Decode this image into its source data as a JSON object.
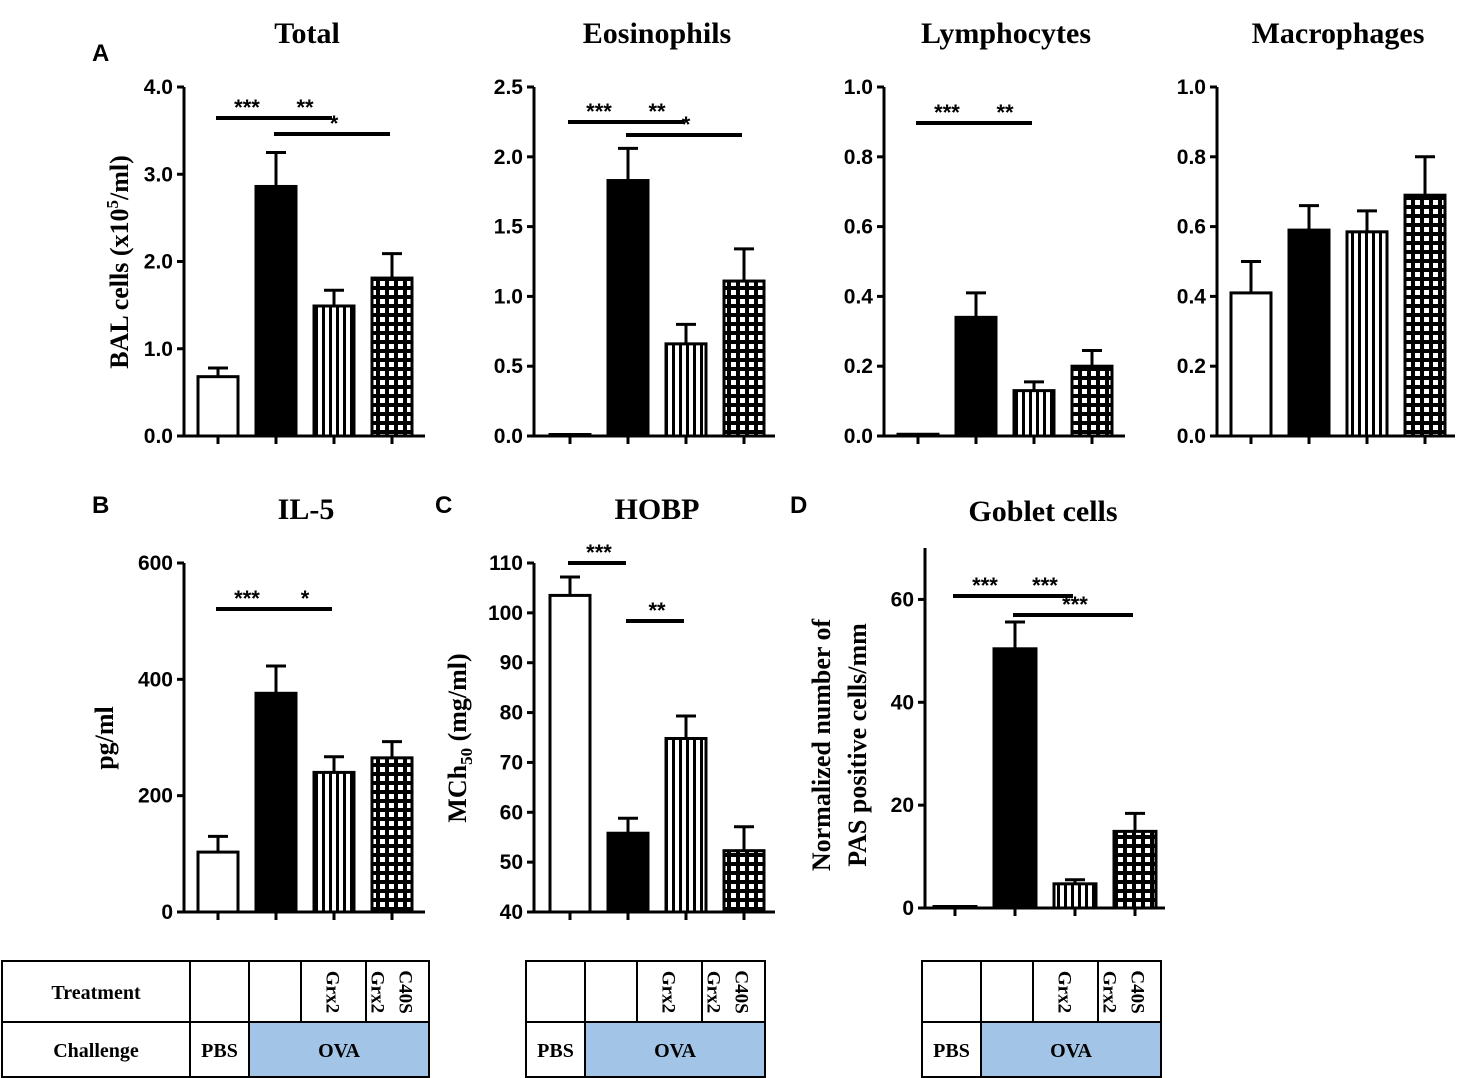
{
  "legend_groups": [
    "PBS",
    "OVA",
    "OVA + Grx2",
    "OVA + Grx2 C40S"
  ],
  "chart_data": [
    {
      "type": "bar",
      "panel": "A",
      "title": "Total",
      "ylabel": "BAL cells (x10^5/ml)",
      "ylim": [
        0,
        4
      ],
      "yticks": [
        "0.0",
        "1.0",
        "2.0",
        "3.0",
        "4.0"
      ],
      "ytick_values": [
        0,
        1,
        2,
        3,
        4
      ],
      "categories": [
        "PBS",
        "OVA",
        "OVA + Grx2",
        "OVA + Grx2 C40S"
      ],
      "values": [
        0.68,
        2.86,
        1.49,
        1.81
      ],
      "errors": [
        0.1,
        0.39,
        0.18,
        0.28
      ],
      "significance": [
        {
          "from": 0,
          "to": 1,
          "label": "***",
          "level": 0
        },
        {
          "from": 1,
          "to": 2,
          "label": "**",
          "level": 0
        },
        {
          "from": 1,
          "to": 3,
          "label": "*",
          "level": 1
        }
      ]
    },
    {
      "type": "bar",
      "panel": "",
      "title": "Eosinophils",
      "ylabel": "",
      "ylim": [
        0,
        2.5
      ],
      "yticks": [
        "0.0",
        "0.5",
        "1.0",
        "1.5",
        "2.0",
        "2.5"
      ],
      "ytick_values": [
        0,
        0.5,
        1,
        1.5,
        2,
        2.5
      ],
      "categories": [
        "PBS",
        "OVA",
        "OVA + Grx2",
        "OVA + Grx2 C40S"
      ],
      "values": [
        0.01,
        1.83,
        0.66,
        1.11
      ],
      "errors": [
        0.0,
        0.23,
        0.14,
        0.23
      ],
      "significance": [
        {
          "from": 0,
          "to": 1,
          "label": "***",
          "level": 0
        },
        {
          "from": 1,
          "to": 2,
          "label": "**",
          "level": 0
        },
        {
          "from": 1,
          "to": 3,
          "label": "*",
          "level": 1
        }
      ]
    },
    {
      "type": "bar",
      "panel": "",
      "title": "Lymphocytes",
      "ylabel": "",
      "ylim": [
        0,
        1
      ],
      "yticks": [
        "0.0",
        "0.2",
        "0.4",
        "0.6",
        "0.8",
        "1.0"
      ],
      "ytick_values": [
        0,
        0.2,
        0.4,
        0.6,
        0.8,
        1.0
      ],
      "categories": [
        "PBS",
        "OVA",
        "OVA + Grx2",
        "OVA + Grx2 C40S"
      ],
      "values": [
        0.005,
        0.34,
        0.13,
        0.2
      ],
      "errors": [
        0.0,
        0.07,
        0.025,
        0.045
      ],
      "significance": [
        {
          "from": 0,
          "to": 1,
          "label": "***",
          "level": 0
        },
        {
          "from": 1,
          "to": 2,
          "label": "**",
          "level": 0
        }
      ]
    },
    {
      "type": "bar",
      "panel": "",
      "title": "Macrophages",
      "ylabel": "",
      "ylim": [
        0,
        1
      ],
      "yticks": [
        "0.0",
        "0.2",
        "0.4",
        "0.6",
        "0.8",
        "1.0"
      ],
      "ytick_values": [
        0,
        0.2,
        0.4,
        0.6,
        0.8,
        1.0
      ],
      "categories": [
        "PBS",
        "OVA",
        "OVA + Grx2",
        "OVA + Grx2 C40S"
      ],
      "values": [
        0.41,
        0.59,
        0.585,
        0.69
      ],
      "errors": [
        0.09,
        0.07,
        0.06,
        0.11
      ],
      "significance": []
    },
    {
      "type": "bar",
      "panel": "B",
      "title": "IL-5",
      "ylabel": "pg/ml",
      "ylim": [
        0,
        600
      ],
      "yticks": [
        "0",
        "200",
        "400",
        "600"
      ],
      "ytick_values": [
        0,
        200,
        400,
        600
      ],
      "categories": [
        "PBS",
        "OVA",
        "OVA + Grx2",
        "OVA + Grx2 C40S"
      ],
      "values": [
        103,
        376,
        240,
        265
      ],
      "errors": [
        27,
        47,
        27,
        28
      ],
      "significance": [
        {
          "from": 0,
          "to": 1,
          "label": "***",
          "level": 0
        },
        {
          "from": 1,
          "to": 2,
          "label": "*",
          "level": 0
        }
      ]
    },
    {
      "type": "bar",
      "panel": "C",
      "title": "HOBP",
      "ylabel": "MCh50 (mg/ml)",
      "ylim": [
        40,
        110
      ],
      "yticks": [
        "40",
        "50",
        "60",
        "70",
        "80",
        "90",
        "100",
        "110"
      ],
      "ytick_values": [
        40,
        50,
        60,
        70,
        80,
        90,
        100,
        110
      ],
      "categories": [
        "PBS",
        "OVA",
        "OVA + Grx2",
        "OVA + Grx2 C40S"
      ],
      "values": [
        103.5,
        55.8,
        74.8,
        52.3
      ],
      "errors": [
        3.7,
        3.0,
        4.5,
        4.8
      ],
      "significance": [
        {
          "from": 0,
          "to": 1,
          "label": "***",
          "level": 0
        },
        {
          "from": 1,
          "to": 2,
          "label": "**",
          "level": 1
        }
      ]
    },
    {
      "type": "bar",
      "panel": "D",
      "title": "Goblet cells",
      "ylabel": "Normalized number of PAS positive cells/mm",
      "ylim": [
        0,
        70
      ],
      "yticks": [
        "0",
        "20",
        "40",
        "60"
      ],
      "ytick_values": [
        0,
        20,
        40,
        60
      ],
      "categories": [
        "PBS",
        "OVA",
        "OVA + Grx2",
        "OVA + Grx2 C40S"
      ],
      "values": [
        0,
        50.4,
        4.7,
        14.9
      ],
      "errors": [
        0,
        5.2,
        0.8,
        3.5
      ],
      "significance": [
        {
          "from": 0,
          "to": 1,
          "label": "***",
          "level": 0
        },
        {
          "from": 1,
          "to": 2,
          "label": "***",
          "level": 0
        },
        {
          "from": 1,
          "to": 3,
          "label": "***",
          "level": 1
        }
      ]
    }
  ],
  "table": {
    "treatment_label": "Treatment",
    "challenge_label": "Challenge",
    "treatments": [
      "",
      "",
      "Grx2",
      "Grx2 C40S"
    ],
    "challenge_pbs": "PBS",
    "challenge_ova": "OVA",
    "ova_color": "#a2c4e6"
  }
}
